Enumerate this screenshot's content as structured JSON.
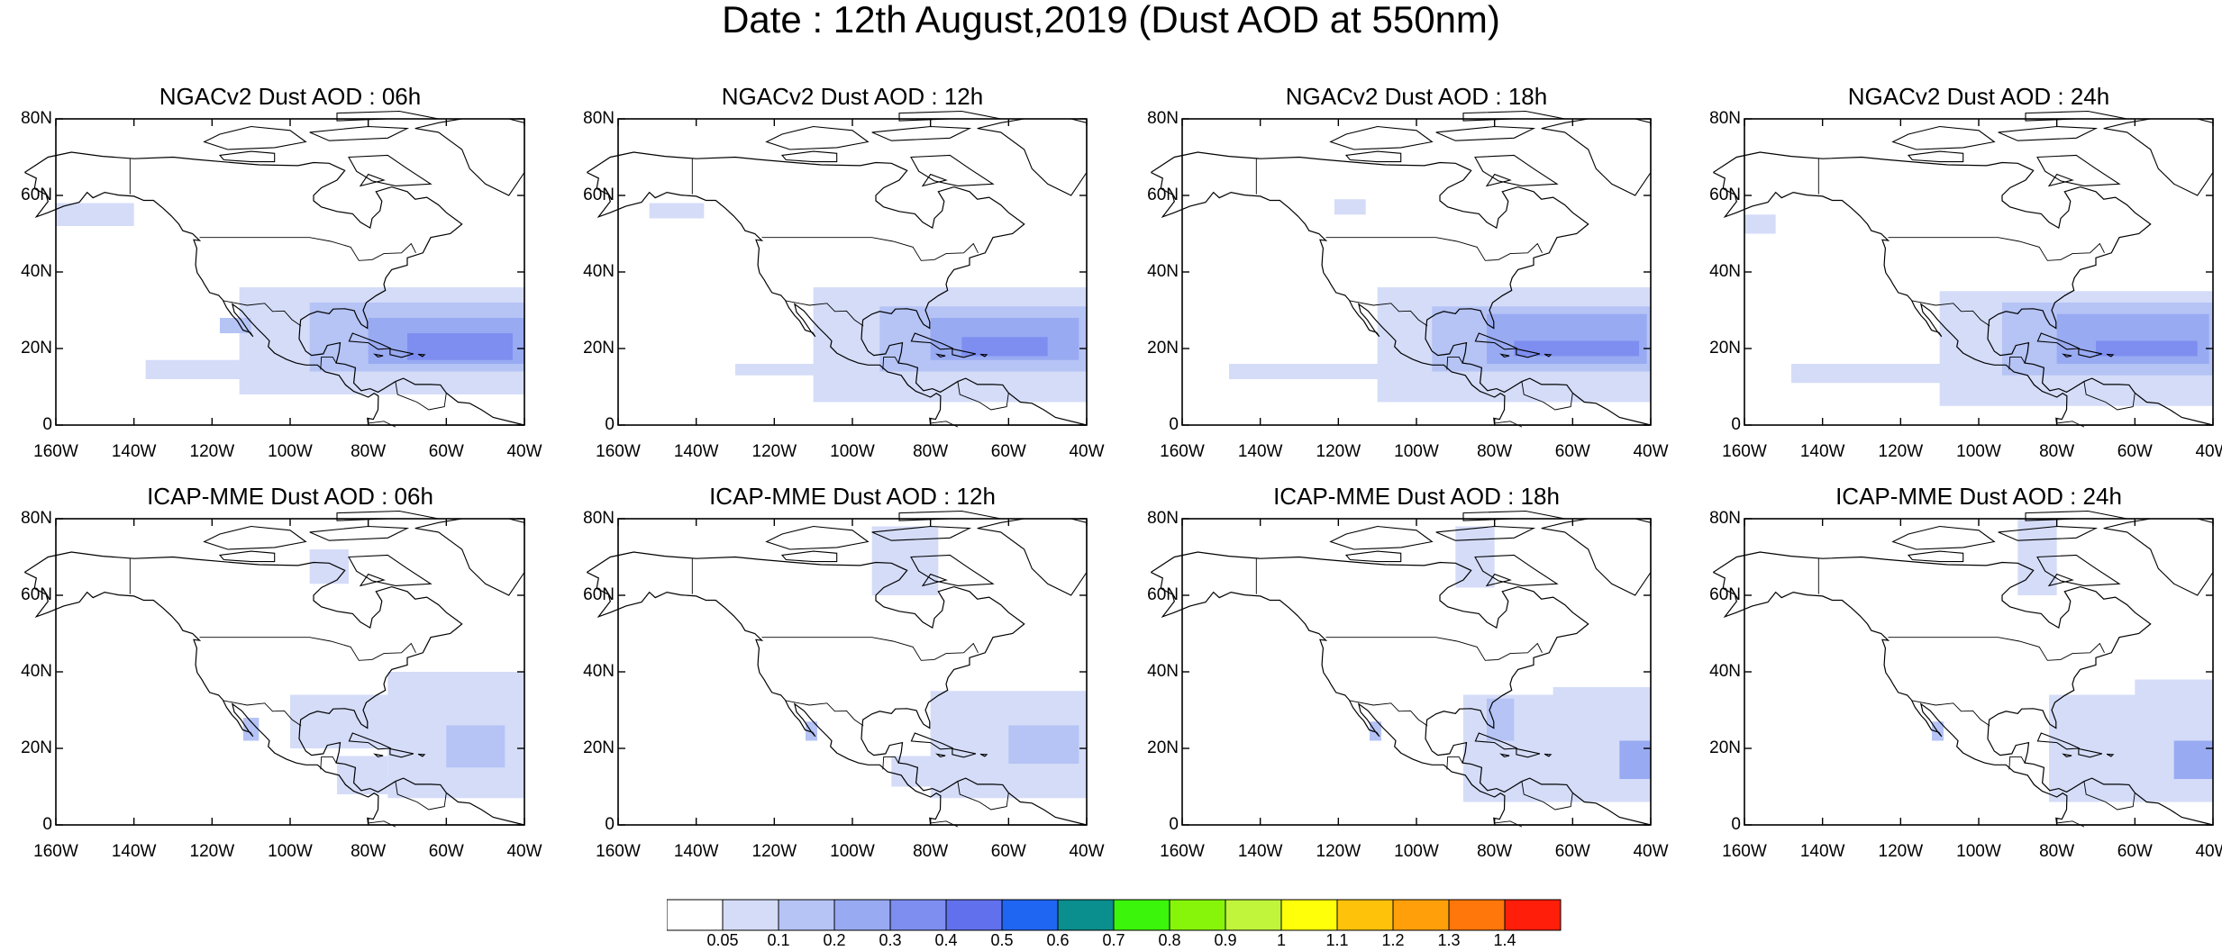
{
  "title": "Date : 12th August,2019 (Dust AOD at 550nm)",
  "x_tick_labels": [
    "160W",
    "140W",
    "120W",
    "100W",
    "80W",
    "60W",
    "40W"
  ],
  "y_tick_labels": [
    "80N",
    "60N",
    "40N",
    "20N",
    "0"
  ],
  "map_extent": {
    "lon": [
      -160,
      -40
    ],
    "lat": [
      0,
      80
    ]
  },
  "panels": [
    {
      "title": "NGACv2 Dust AOD : 06h",
      "model": "NGACv2",
      "hour": "06h"
    },
    {
      "title": "NGACv2 Dust AOD : 12h",
      "model": "NGACv2",
      "hour": "12h"
    },
    {
      "title": "NGACv2 Dust AOD : 18h",
      "model": "NGACv2",
      "hour": "18h"
    },
    {
      "title": "NGACv2 Dust AOD : 24h",
      "model": "NGACv2",
      "hour": "24h"
    },
    {
      "title": "ICAP-MME Dust AOD : 06h",
      "model": "ICAP-MME",
      "hour": "06h"
    },
    {
      "title": "ICAP-MME Dust AOD : 12h",
      "model": "ICAP-MME",
      "hour": "12h"
    },
    {
      "title": "ICAP-MME Dust AOD : 18h",
      "model": "ICAP-MME",
      "hour": "18h"
    },
    {
      "title": "ICAP-MME Dust AOD : 24h",
      "model": "ICAP-MME",
      "hour": "24h"
    }
  ],
  "colorbar": {
    "labels": [
      "0.05",
      "0.1",
      "0.2",
      "0.3",
      "0.4",
      "0.5",
      "0.6",
      "0.7",
      "0.8",
      "0.9",
      "1",
      "1.1",
      "1.2",
      "1.3",
      "1.4"
    ],
    "colors": [
      "#ffffff",
      "#d4dcf8",
      "#b5c3f5",
      "#98aaf2",
      "#7d8ef0",
      "#6170ec",
      "#1f66f2",
      "#0b8e8e",
      "#3bf50a",
      "#86f50a",
      "#c0f53c",
      "#ffff0a",
      "#ffc20a",
      "#ff9f0a",
      "#ff760a",
      "#ff1e0a"
    ]
  },
  "colors": {
    "aod_0_05": "#d4dcf8",
    "aod_0_1": "#b5c3f5",
    "aod_0_2": "#98aaf2",
    "aod_0_3": "#7d8ef0"
  }
}
